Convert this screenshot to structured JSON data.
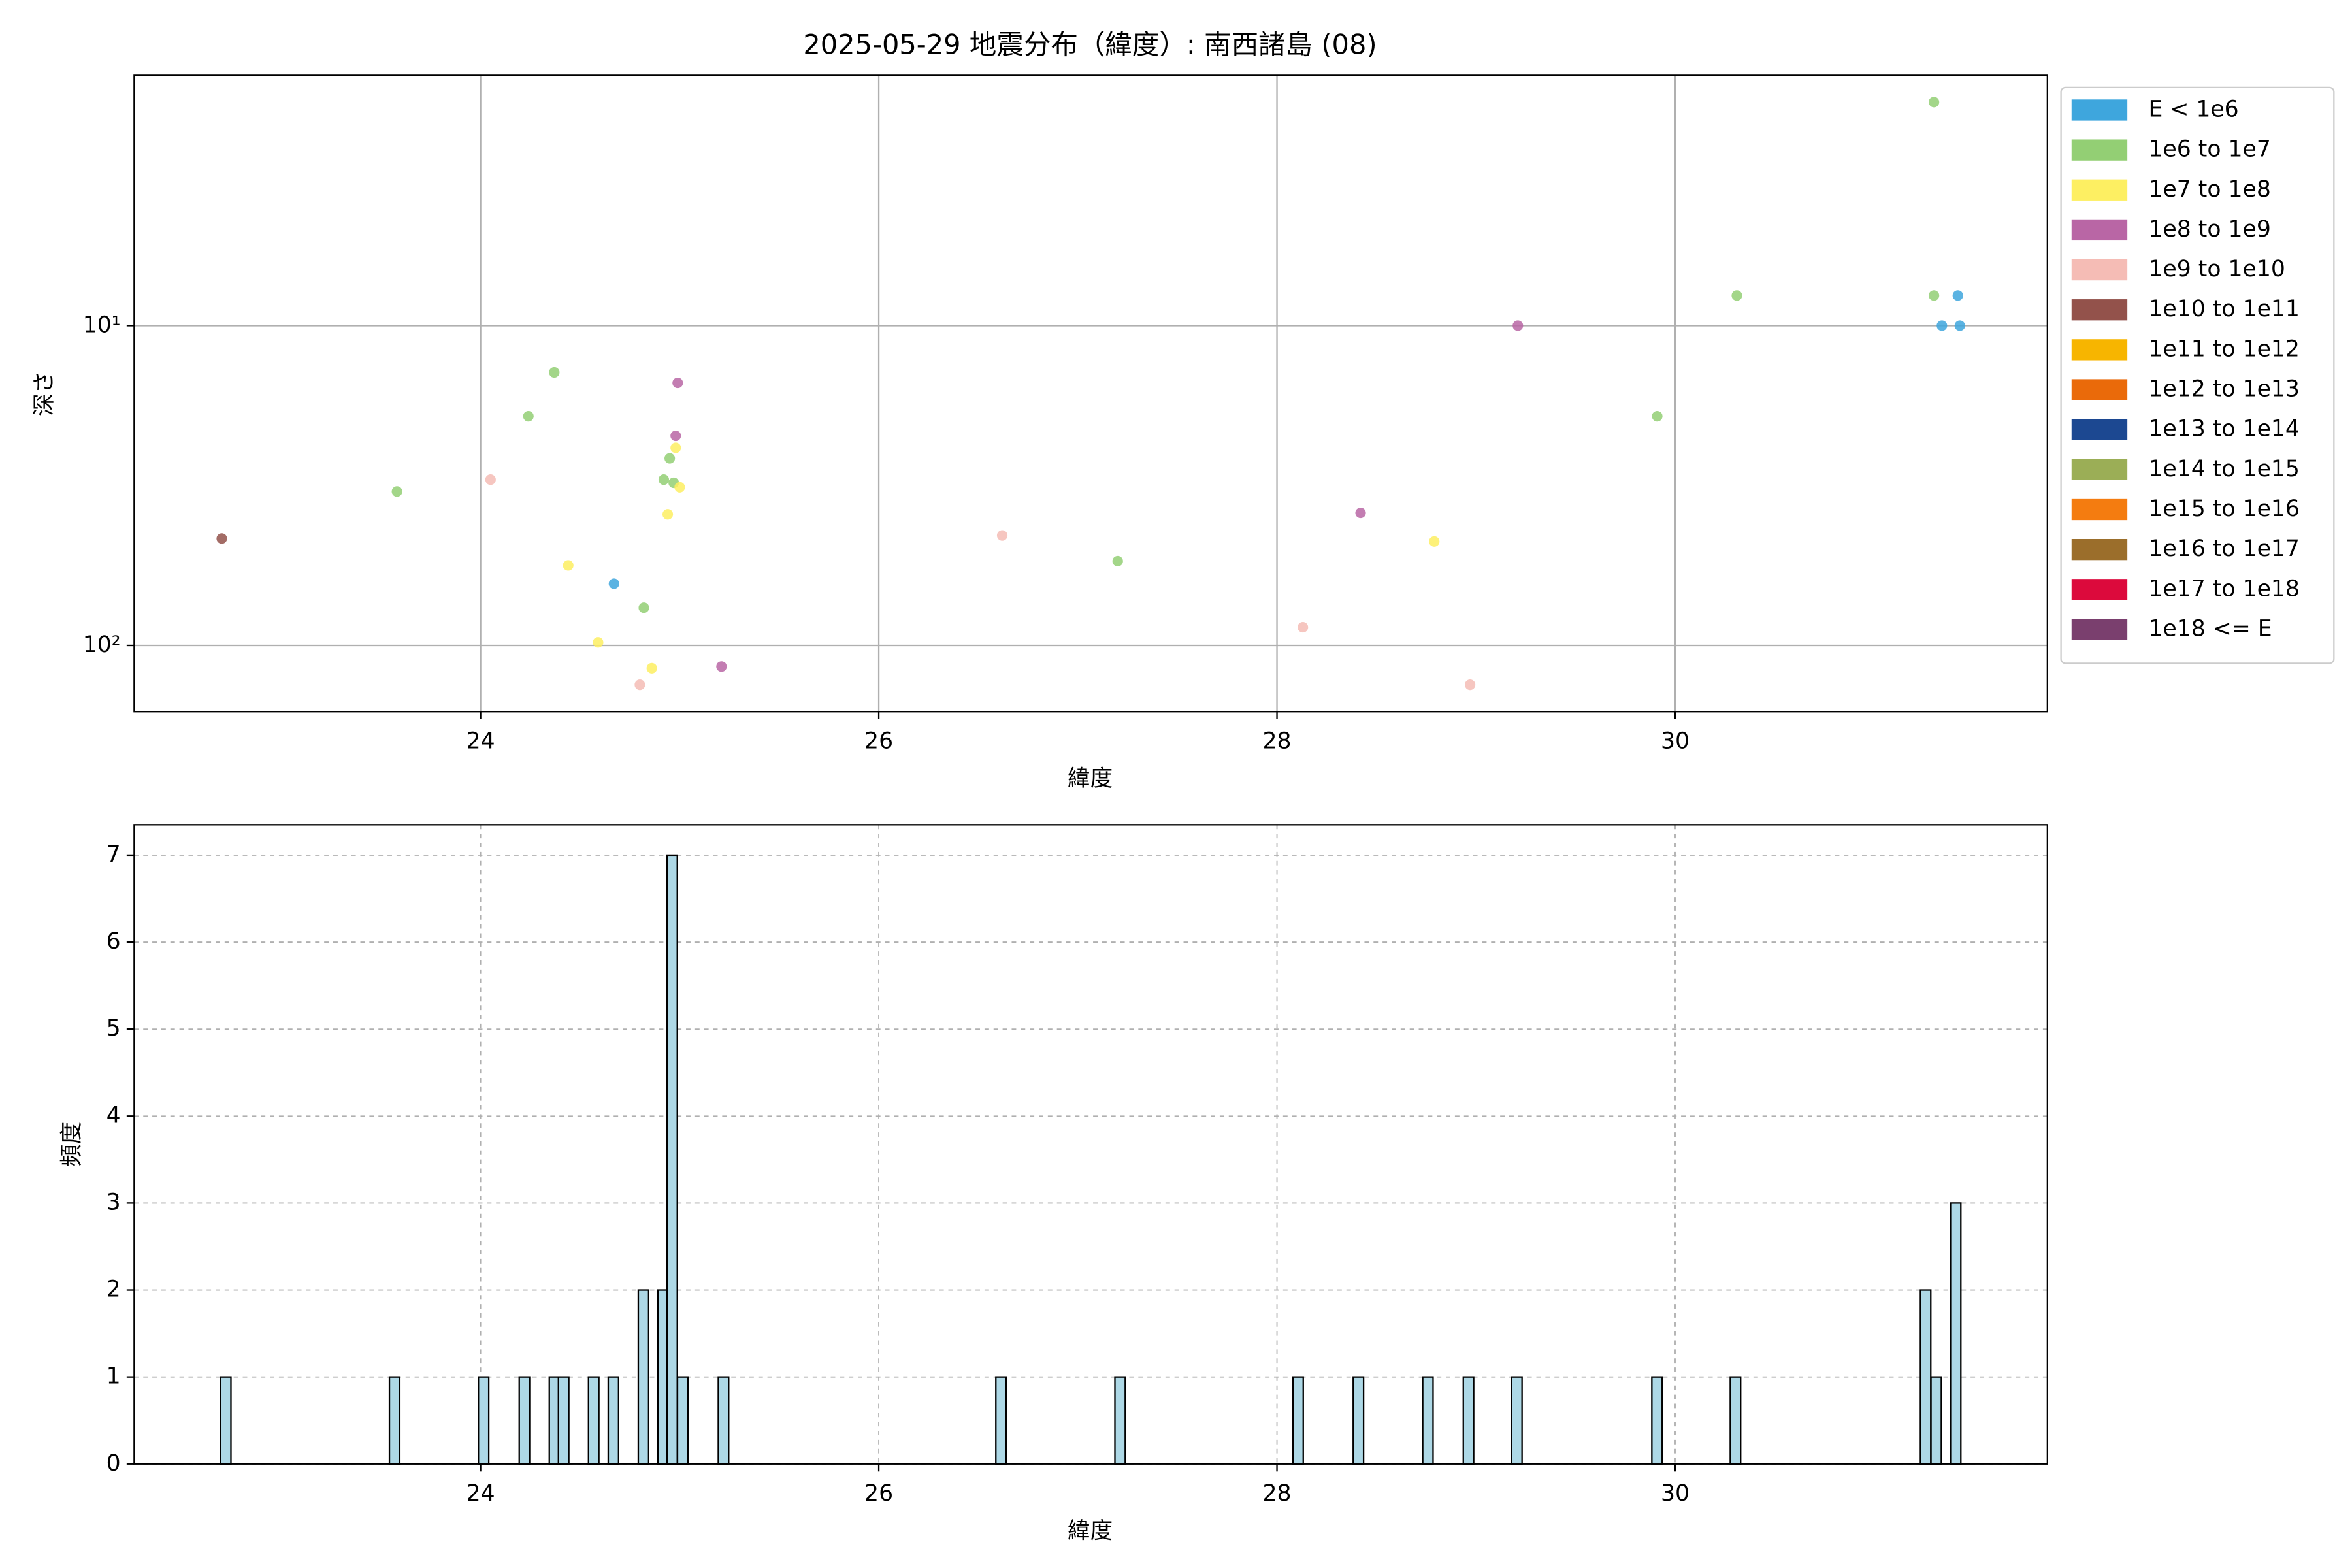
{
  "chart_data": [
    {
      "type": "scatter",
      "title": "2025-05-29 地震分布（緯度）: 南西諸島 (08)",
      "x_label": "緯度",
      "y_label": "深さ",
      "xlim": [
        22.26,
        31.87
      ],
      "xticks": [
        24,
        26,
        28,
        30
      ],
      "ylim": [
        1.65,
        161
      ],
      "y_log": true,
      "y_inverted": true,
      "yticks": [
        {
          "value": 10,
          "label": "10¹"
        },
        {
          "value": 100,
          "label": "10²"
        }
      ],
      "grid": true,
      "legend": "outside-right",
      "series": [
        {
          "name": "E < 1e6",
          "color": "#3ea6dd",
          "x": [
            24.67,
            31.42,
            31.34,
            31.43
          ],
          "values": [
            64.1,
            8.05,
            10,
            10
          ]
        },
        {
          "name": "1e6 to 1e7",
          "color": "#93cf74",
          "x": [
            23.58,
            24.24,
            24.37,
            24.82,
            24.92,
            24.95,
            24.97,
            27.2,
            29.91,
            30.31,
            31.3,
            31.3
          ],
          "values": [
            33.0,
            19.2,
            14.0,
            76.2,
            30.3,
            26.0,
            31.0,
            54.5,
            19.2,
            8.05,
            2.0,
            8.05
          ]
        },
        {
          "name": "1e7 to 1e8",
          "color": "#fdef62",
          "x": [
            24.44,
            24.59,
            24.86,
            24.94,
            24.98,
            25.0,
            28.79
          ],
          "values": [
            56.2,
            97.8,
            117.8,
            38.9,
            24.1,
            32.0,
            47.3
          ]
        },
        {
          "name": "1e8 to 1e9",
          "color": "#b966a5",
          "x": [
            24.98,
            24.99,
            25.21,
            28.42,
            29.21
          ],
          "values": [
            22.1,
            15.1,
            116.4,
            38.5,
            10
          ]
        },
        {
          "name": "1e9 to 1e10",
          "color": "#f5bcb5",
          "x": [
            24.05,
            24.8,
            26.62,
            28.13,
            28.97
          ],
          "values": [
            30.3,
            132.7,
            45.3,
            87.7,
            132.7
          ]
        },
        {
          "name": "1e10 to 1e11",
          "color": "#93524b",
          "x": [
            22.7
          ],
          "values": [
            46.3
          ]
        },
        {
          "name": "1e11 to 1e12",
          "color": "#f7b500",
          "x": [],
          "values": []
        },
        {
          "name": "1e12 to 1e13",
          "color": "#ea6a0a",
          "x": [],
          "values": []
        },
        {
          "name": "1e13 to 1e14",
          "color": "#1c4891",
          "x": [],
          "values": []
        },
        {
          "name": "1e14 to 1e15",
          "color": "#9bae56",
          "x": [],
          "values": []
        },
        {
          "name": "1e15 to 1e16",
          "color": "#f47c10",
          "x": [],
          "values": []
        },
        {
          "name": "1e16 to 1e17",
          "color": "#9b6e2b",
          "x": [],
          "values": []
        },
        {
          "name": "1e17 to 1e18",
          "color": "#dc0a3c",
          "x": [],
          "values": []
        },
        {
          "name": "1e18 <= E",
          "color": "#7a3f6e",
          "x": [],
          "values": []
        }
      ]
    },
    {
      "type": "histogram",
      "x_label": "緯度",
      "y_label": "頻度",
      "xlim": [
        22.26,
        31.87
      ],
      "xticks": [
        24,
        26,
        28,
        30
      ],
      "ylim": [
        0,
        7.35
      ],
      "yticks": [
        0,
        1,
        2,
        3,
        4,
        5,
        6,
        7
      ],
      "grid": true,
      "color": "#add8e6",
      "bins": [
        [
          22.694,
          22.746
        ],
        [
          23.542,
          23.594
        ],
        [
          23.989,
          24.041
        ],
        [
          24.194,
          24.246
        ],
        [
          24.345,
          24.397
        ],
        [
          24.391,
          24.443
        ],
        [
          24.542,
          24.594
        ],
        [
          24.641,
          24.693
        ],
        [
          24.792,
          24.844
        ],
        [
          24.891,
          24.943
        ],
        [
          24.936,
          24.988
        ],
        [
          24.989,
          25.041
        ],
        [
          25.194,
          25.246
        ],
        [
          26.588,
          26.64
        ],
        [
          27.186,
          27.238
        ],
        [
          28.08,
          28.132
        ],
        [
          28.383,
          28.435
        ],
        [
          28.732,
          28.784
        ],
        [
          28.936,
          28.988
        ],
        [
          29.179,
          29.231
        ],
        [
          29.883,
          29.935
        ],
        [
          30.277,
          30.329
        ],
        [
          31.232,
          31.284
        ],
        [
          31.285,
          31.337
        ],
        [
          31.383,
          31.435
        ]
      ],
      "values": [
        1,
        1,
        1,
        1,
        1,
        1,
        1,
        1,
        2,
        2,
        7,
        1,
        1,
        1,
        1,
        1,
        1,
        1,
        1,
        1,
        1,
        1,
        2,
        1,
        3
      ]
    }
  ]
}
